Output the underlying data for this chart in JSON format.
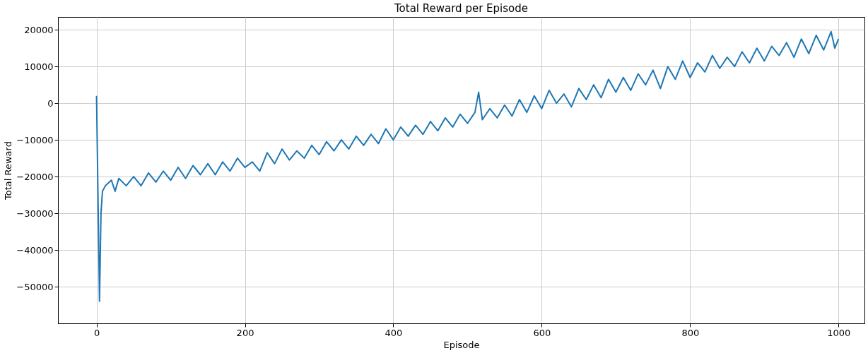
{
  "chart_data": {
    "type": "line",
    "title": "Total Reward per Episode",
    "xlabel": "Episode",
    "ylabel": "Total Reward",
    "x": [
      0,
      4,
      6,
      8,
      12,
      20,
      25,
      30,
      40,
      50,
      60,
      70,
      80,
      90,
      100,
      110,
      120,
      130,
      140,
      150,
      160,
      170,
      180,
      190,
      200,
      210,
      220,
      230,
      240,
      250,
      260,
      270,
      280,
      290,
      300,
      310,
      320,
      330,
      340,
      350,
      360,
      370,
      380,
      390,
      400,
      410,
      420,
      430,
      440,
      450,
      460,
      470,
      480,
      490,
      500,
      510,
      515,
      520,
      530,
      540,
      550,
      560,
      570,
      580,
      590,
      600,
      610,
      620,
      630,
      640,
      650,
      660,
      670,
      680,
      690,
      700,
      710,
      720,
      730,
      740,
      750,
      760,
      770,
      780,
      790,
      800,
      810,
      820,
      830,
      840,
      850,
      860,
      870,
      880,
      890,
      900,
      910,
      920,
      930,
      940,
      950,
      960,
      970,
      980,
      990,
      995,
      1000
    ],
    "series": [
      {
        "color": "#1f77b4",
        "values": [
          2000,
          -54000,
          -30000,
          -24000,
          -22500,
          -21000,
          -24000,
          -20500,
          -22500,
          -20000,
          -22500,
          -19000,
          -21500,
          -18500,
          -21000,
          -17500,
          -20500,
          -17000,
          -19500,
          -16500,
          -19500,
          -16000,
          -18500,
          -15000,
          -17500,
          -16000,
          -18500,
          -13500,
          -16500,
          -12500,
          -15500,
          -13000,
          -15000,
          -11500,
          -14000,
          -10500,
          -13000,
          -10000,
          -12500,
          -9000,
          -11500,
          -8500,
          -11000,
          -7000,
          -10000,
          -6500,
          -9000,
          -6000,
          -8500,
          -5000,
          -7500,
          -4000,
          -6500,
          -3000,
          -5500,
          -2500,
          3000,
          -4500,
          -1500,
          -4000,
          -500,
          -3500,
          1000,
          -2500,
          2000,
          -1500,
          3500,
          0,
          2500,
          -1000,
          4000,
          1000,
          5000,
          1500,
          6500,
          3000,
          7000,
          3500,
          8000,
          5000,
          9000,
          4000,
          10000,
          6500,
          11500,
          7000,
          11000,
          8500,
          13000,
          9500,
          12500,
          10000,
          14000,
          11000,
          15000,
          11500,
          15500,
          13000,
          16500,
          12500,
          17500,
          13500,
          18500,
          14500,
          19500,
          15000,
          17500
        ]
      }
    ],
    "xlim": [
      -52,
      1035
    ],
    "ylim": [
      -60000,
      23500
    ],
    "xticks": [
      0,
      200,
      400,
      600,
      800,
      1000
    ],
    "yticks": [
      -50000,
      -40000,
      -30000,
      -20000,
      -10000,
      0,
      10000,
      20000
    ],
    "grid": true,
    "marker": "none",
    "line_style": "solid"
  }
}
